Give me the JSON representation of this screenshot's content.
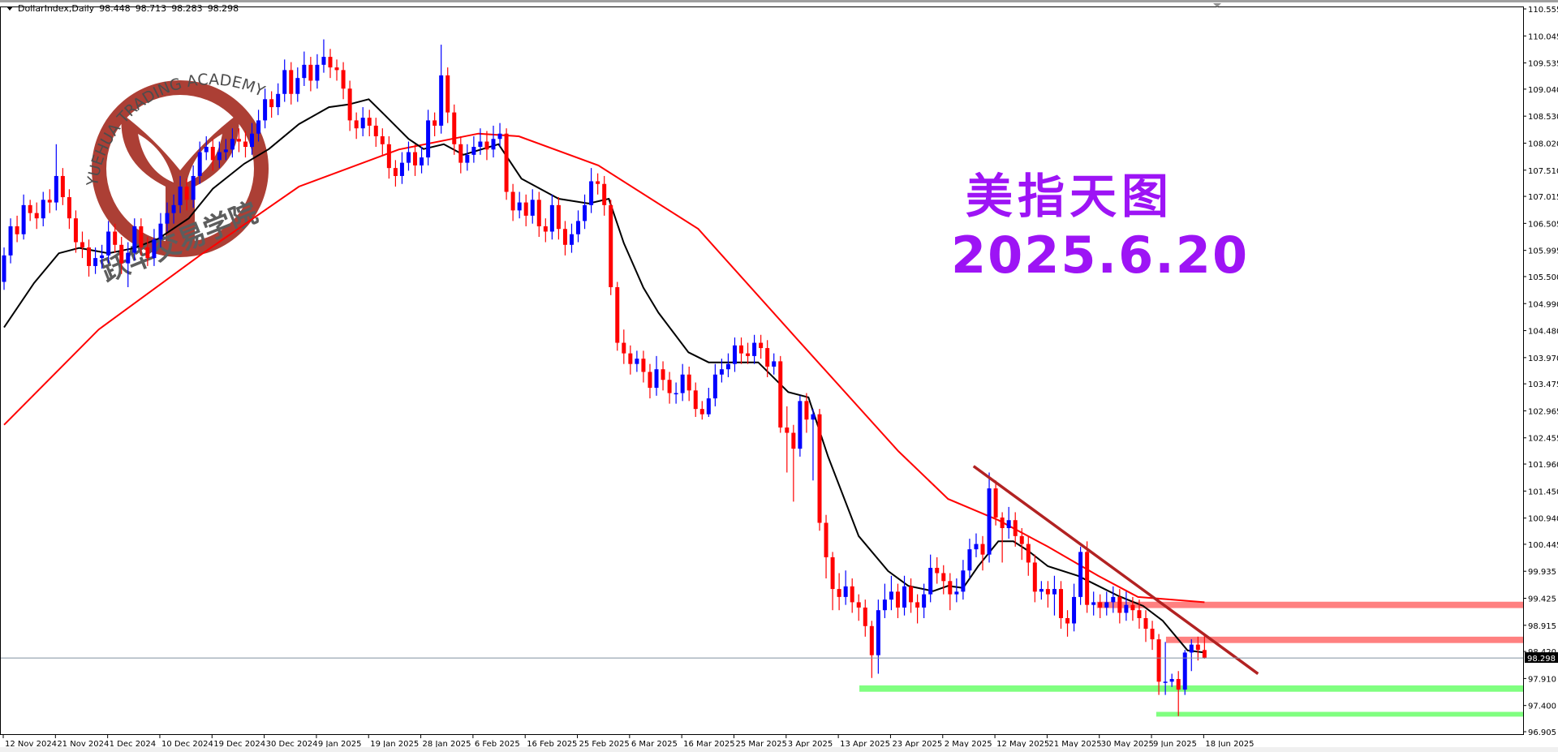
{
  "header": {
    "symbol": "DollarIndex,Daily",
    "open": "98.448",
    "high": "98.713",
    "low": "98.283",
    "close": "98.298"
  },
  "overlay": {
    "title": "美指天图",
    "date": "2025.6.20"
  },
  "logo": {
    "text_en": "YUEHUA TRADING ACADEMY",
    "text_cn": "跃华交易学院",
    "color": "#a8352b"
  },
  "colors": {
    "bull": "#0000ff",
    "bear": "#ff0000",
    "ma_fast": "#000000",
    "ma_slow": "#ff0000",
    "trendline": "#b22222",
    "resistance_zone": "#ff8080",
    "support_zone": "#80ff80",
    "overlay_text": "#9d14f5"
  },
  "chart_data": {
    "type": "candlestick",
    "symbol": "DollarIndex",
    "timeframe": "Daily",
    "ylim": [
      96.905,
      110.555
    ],
    "grid": false,
    "y_ticks": [
      "110.555",
      "110.045",
      "109.535",
      "109.040",
      "108.530",
      "108.020",
      "107.510",
      "107.015",
      "106.505",
      "105.995",
      "105.500",
      "104.990",
      "104.480",
      "103.970",
      "103.475",
      "102.965",
      "102.455",
      "101.960",
      "101.450",
      "100.940",
      "100.445",
      "99.935",
      "99.425",
      "98.915",
      "98.420",
      "97.910",
      "97.400",
      "96.905"
    ],
    "x_ticks": [
      "12 Nov 2024",
      "21 Nov 2024",
      "1 Dec 2024",
      "10 Dec 2024",
      "19 Dec 2024",
      "30 Dec 2024",
      "9 Jan 2025",
      "19 Jan 2025",
      "28 Jan 2025",
      "6 Feb 2025",
      "16 Feb 2025",
      "25 Feb 2025",
      "6 Mar 2025",
      "16 Mar 2025",
      "25 Mar 2025",
      "3 Apr 2025",
      "13 Apr 2025",
      "23 Apr 2025",
      "2 May 2025",
      "12 May 2025",
      "21 May 2025",
      "30 May 2025",
      "9 Jun 2025",
      "18 Jun 2025"
    ],
    "x_tick_every_bars": 8,
    "current_price": "98.298",
    "ohlc": [
      [
        105.4,
        106.05,
        105.25,
        105.9
      ],
      [
        105.9,
        106.6,
        105.75,
        106.45
      ],
      [
        106.45,
        106.65,
        106.15,
        106.3
      ],
      [
        106.3,
        107.05,
        106.2,
        106.85
      ],
      [
        106.85,
        106.95,
        106.55,
        106.7
      ],
      [
        106.7,
        106.9,
        106.4,
        106.6
      ],
      [
        106.6,
        107.1,
        106.45,
        106.95
      ],
      [
        106.95,
        107.15,
        106.7,
        106.9
      ],
      [
        106.9,
        108.0,
        106.75,
        107.4
      ],
      [
        107.4,
        107.55,
        106.85,
        107.0
      ],
      [
        107.0,
        107.15,
        106.4,
        106.6
      ],
      [
        106.6,
        106.75,
        105.95,
        106.15
      ],
      [
        106.15,
        106.35,
        105.85,
        106.05
      ],
      [
        106.05,
        106.2,
        105.5,
        105.7
      ],
      [
        105.7,
        106.05,
        105.55,
        105.85
      ],
      [
        105.85,
        106.1,
        105.65,
        105.9
      ],
      [
        105.9,
        106.55,
        105.75,
        106.35
      ],
      [
        106.35,
        106.5,
        105.95,
        106.1
      ],
      [
        106.1,
        106.25,
        105.55,
        105.75
      ],
      [
        105.75,
        106.15,
        105.3,
        105.95
      ],
      [
        105.95,
        106.6,
        105.8,
        106.45
      ],
      [
        106.45,
        106.6,
        105.9,
        106.05
      ],
      [
        106.05,
        106.25,
        105.7,
        105.85
      ],
      [
        105.85,
        106.4,
        105.7,
        106.2
      ],
      [
        106.2,
        106.7,
        106.05,
        106.5
      ],
      [
        106.5,
        106.9,
        106.35,
        106.7
      ],
      [
        106.7,
        107.05,
        106.5,
        106.85
      ],
      [
        106.85,
        107.4,
        106.7,
        107.2
      ],
      [
        107.2,
        107.35,
        106.75,
        106.95
      ],
      [
        106.95,
        107.6,
        106.8,
        107.4
      ],
      [
        107.4,
        108.05,
        107.25,
        107.85
      ],
      [
        107.85,
        108.15,
        107.7,
        107.95
      ],
      [
        107.95,
        108.1,
        107.5,
        107.7
      ],
      [
        107.7,
        108.05,
        107.55,
        107.85
      ],
      [
        107.85,
        108.1,
        107.7,
        107.9
      ],
      [
        107.9,
        108.3,
        107.75,
        108.1
      ],
      [
        108.1,
        108.3,
        107.85,
        108.05
      ],
      [
        108.05,
        108.25,
        107.75,
        107.95
      ],
      [
        107.95,
        108.4,
        107.8,
        108.2
      ],
      [
        108.2,
        108.65,
        108.05,
        108.45
      ],
      [
        108.45,
        109.05,
        108.3,
        108.85
      ],
      [
        108.85,
        109.0,
        108.5,
        108.7
      ],
      [
        108.7,
        109.15,
        108.55,
        108.95
      ],
      [
        108.95,
        109.6,
        108.8,
        109.4
      ],
      [
        109.4,
        109.55,
        108.75,
        108.95
      ],
      [
        108.95,
        109.45,
        108.8,
        109.25
      ],
      [
        109.25,
        109.75,
        109.1,
        109.5
      ],
      [
        109.5,
        109.65,
        109.0,
        109.2
      ],
      [
        109.2,
        109.7,
        109.05,
        109.5
      ],
      [
        109.5,
        109.98,
        109.35,
        109.65
      ],
      [
        109.65,
        109.8,
        109.25,
        109.45
      ],
      [
        109.45,
        109.6,
        109.2,
        109.4
      ],
      [
        109.4,
        109.55,
        108.85,
        109.05
      ],
      [
        109.05,
        109.2,
        108.25,
        108.45
      ],
      [
        108.45,
        108.6,
        108.1,
        108.3
      ],
      [
        108.3,
        108.7,
        108.15,
        108.5
      ],
      [
        108.5,
        108.65,
        108.15,
        108.35
      ],
      [
        108.35,
        108.5,
        107.95,
        108.15
      ],
      [
        108.15,
        108.3,
        107.8,
        108.0
      ],
      [
        108.0,
        108.15,
        107.35,
        107.55
      ],
      [
        107.55,
        107.7,
        107.2,
        107.4
      ],
      [
        107.4,
        107.85,
        107.25,
        107.65
      ],
      [
        107.65,
        108.05,
        107.5,
        107.85
      ],
      [
        107.85,
        108.0,
        107.4,
        107.6
      ],
      [
        107.6,
        107.95,
        107.45,
        107.75
      ],
      [
        107.75,
        108.65,
        107.6,
        108.45
      ],
      [
        108.45,
        108.6,
        108.15,
        108.35
      ],
      [
        108.35,
        109.88,
        108.2,
        109.3
      ],
      [
        109.3,
        109.45,
        108.4,
        108.6
      ],
      [
        108.6,
        108.75,
        107.8,
        108.0
      ],
      [
        108.0,
        108.15,
        107.45,
        107.65
      ],
      [
        107.65,
        108.0,
        107.5,
        107.8
      ],
      [
        107.8,
        108.15,
        107.65,
        107.95
      ],
      [
        107.95,
        108.3,
        107.8,
        108.05
      ],
      [
        108.05,
        108.25,
        107.7,
        107.9
      ],
      [
        107.9,
        108.35,
        107.75,
        108.1
      ],
      [
        108.1,
        108.4,
        107.95,
        108.2
      ],
      [
        108.2,
        108.3,
        106.95,
        107.1
      ],
      [
        107.1,
        107.25,
        106.55,
        106.75
      ],
      [
        106.75,
        107.1,
        106.6,
        106.9
      ],
      [
        106.9,
        107.05,
        106.45,
        106.65
      ],
      [
        106.65,
        107.15,
        106.5,
        106.95
      ],
      [
        106.95,
        107.1,
        106.25,
        106.45
      ],
      [
        106.45,
        106.6,
        106.15,
        106.35
      ],
      [
        106.35,
        107.05,
        106.2,
        106.85
      ],
      [
        106.85,
        107.0,
        106.2,
        106.4
      ],
      [
        106.4,
        106.55,
        105.9,
        106.1
      ],
      [
        106.1,
        106.5,
        105.95,
        106.3
      ],
      [
        106.3,
        106.75,
        106.15,
        106.55
      ],
      [
        106.55,
        107.05,
        106.4,
        106.85
      ],
      [
        106.85,
        107.55,
        106.7,
        107.3
      ],
      [
        107.3,
        107.45,
        107.05,
        107.25
      ],
      [
        107.25,
        107.4,
        106.65,
        106.85
      ],
      [
        106.85,
        106.95,
        105.15,
        105.3
      ],
      [
        105.3,
        105.4,
        104.1,
        104.25
      ],
      [
        104.25,
        104.5,
        103.85,
        104.05
      ],
      [
        104.05,
        104.2,
        103.65,
        103.85
      ],
      [
        103.85,
        104.1,
        103.7,
        103.95
      ],
      [
        103.95,
        104.1,
        103.5,
        103.7
      ],
      [
        103.7,
        103.85,
        103.2,
        103.4
      ],
      [
        103.4,
        104.0,
        103.25,
        103.75
      ],
      [
        103.75,
        103.9,
        103.35,
        103.55
      ],
      [
        103.55,
        103.7,
        103.1,
        103.3
      ],
      [
        103.3,
        103.5,
        103.1,
        103.3
      ],
      [
        103.3,
        103.85,
        103.15,
        103.65
      ],
      [
        103.65,
        103.8,
        103.15,
        103.35
      ],
      [
        103.35,
        103.5,
        102.85,
        103.0
      ],
      [
        103.0,
        103.15,
        102.8,
        102.9
      ],
      [
        102.9,
        103.4,
        102.85,
        103.2
      ],
      [
        103.2,
        103.85,
        103.05,
        103.65
      ],
      [
        103.65,
        103.95,
        103.5,
        103.75
      ],
      [
        103.75,
        104.05,
        103.6,
        103.85
      ],
      [
        103.85,
        104.35,
        103.7,
        104.2
      ],
      [
        104.2,
        104.35,
        103.85,
        104.05
      ],
      [
        104.05,
        104.25,
        103.85,
        104.0
      ],
      [
        104.0,
        104.4,
        103.85,
        104.25
      ],
      [
        104.25,
        104.4,
        103.95,
        104.15
      ],
      [
        104.15,
        104.3,
        103.6,
        103.8
      ],
      [
        103.8,
        104.05,
        103.65,
        103.9
      ],
      [
        103.9,
        104.0,
        102.55,
        102.65
      ],
      [
        102.65,
        103.05,
        101.8,
        102.55
      ],
      [
        102.55,
        102.7,
        101.25,
        102.25
      ],
      [
        102.25,
        103.25,
        102.1,
        103.15
      ],
      [
        103.15,
        103.3,
        102.55,
        102.8
      ],
      [
        102.8,
        103.0,
        101.65,
        102.9
      ],
      [
        102.9,
        103.0,
        100.7,
        100.85
      ],
      [
        100.85,
        101.0,
        99.8,
        100.2
      ],
      [
        100.2,
        100.3,
        99.2,
        99.6
      ],
      [
        99.6,
        99.9,
        99.2,
        99.45
      ],
      [
        99.45,
        99.95,
        99.3,
        99.65
      ],
      [
        99.65,
        99.8,
        99.15,
        99.35
      ],
      [
        99.35,
        99.5,
        99.0,
        99.25
      ],
      [
        99.25,
        99.4,
        98.7,
        98.9
      ],
      [
        98.9,
        99.0,
        97.92,
        98.35
      ],
      [
        98.35,
        99.4,
        98.0,
        99.2
      ],
      [
        99.2,
        99.7,
        99.05,
        99.4
      ],
      [
        99.4,
        99.85,
        99.2,
        99.55
      ],
      [
        99.55,
        99.7,
        99.05,
        99.25
      ],
      [
        99.25,
        99.85,
        99.1,
        99.65
      ],
      [
        99.65,
        99.8,
        99.15,
        99.35
      ],
      [
        99.35,
        99.5,
        98.95,
        99.25
      ],
      [
        99.25,
        99.7,
        99.05,
        99.5
      ],
      [
        99.5,
        100.25,
        99.35,
        100.0
      ],
      [
        100.0,
        100.2,
        99.7,
        99.9
      ],
      [
        99.9,
        100.05,
        99.5,
        99.75
      ],
      [
        99.75,
        99.9,
        99.2,
        99.5
      ],
      [
        99.5,
        99.8,
        99.35,
        99.55
      ],
      [
        99.55,
        100.15,
        99.4,
        99.95
      ],
      [
        99.95,
        100.55,
        99.8,
        100.35
      ],
      [
        100.35,
        100.65,
        100.2,
        100.45
      ],
      [
        100.45,
        100.6,
        99.95,
        100.25
      ],
      [
        100.25,
        101.8,
        100.1,
        101.5
      ],
      [
        101.5,
        101.65,
        100.8,
        100.95
      ],
      [
        100.95,
        101.05,
        100.1,
        100.75
      ],
      [
        100.75,
        101.15,
        100.55,
        100.9
      ],
      [
        100.9,
        101.05,
        100.4,
        100.6
      ],
      [
        100.6,
        100.75,
        100.15,
        100.45
      ],
      [
        100.45,
        100.6,
        99.85,
        100.1
      ],
      [
        100.1,
        100.25,
        99.35,
        99.55
      ],
      [
        99.55,
        99.75,
        99.4,
        99.6
      ],
      [
        99.6,
        99.75,
        99.25,
        99.5
      ],
      [
        99.5,
        99.85,
        99.1,
        99.6
      ],
      [
        99.6,
        99.75,
        98.85,
        99.05
      ],
      [
        99.05,
        99.2,
        98.7,
        98.95
      ],
      [
        98.95,
        99.7,
        98.8,
        99.45
      ],
      [
        99.45,
        100.4,
        99.3,
        100.3
      ],
      [
        100.3,
        100.5,
        99.15,
        99.3
      ],
      [
        99.3,
        99.55,
        99.1,
        99.35
      ],
      [
        99.35,
        99.5,
        99.05,
        99.25
      ],
      [
        99.25,
        99.55,
        99.1,
        99.35
      ],
      [
        99.35,
        99.65,
        99.15,
        99.45
      ],
      [
        99.45,
        99.6,
        98.95,
        99.15
      ],
      [
        99.15,
        99.55,
        99.0,
        99.3
      ],
      [
        99.3,
        99.45,
        99.0,
        99.2
      ],
      [
        99.2,
        99.4,
        98.85,
        99.05
      ],
      [
        99.05,
        99.2,
        98.6,
        98.85
      ],
      [
        98.85,
        99.0,
        98.45,
        98.65
      ],
      [
        98.65,
        98.75,
        97.6,
        97.85
      ],
      [
        97.85,
        98.6,
        97.6,
        97.85
      ],
      [
        97.85,
        98.0,
        97.75,
        97.9
      ],
      [
        97.9,
        98.05,
        97.2,
        97.7
      ],
      [
        97.7,
        98.45,
        97.6,
        98.4
      ],
      [
        98.4,
        98.65,
        98.05,
        98.55
      ],
      [
        98.55,
        98.7,
        98.25,
        98.45
      ],
      [
        98.448,
        98.713,
        98.283,
        98.298
      ]
    ],
    "ma_fast": [
      [
        0,
        104.54
      ],
      [
        4.6,
        105.38
      ],
      [
        8.4,
        105.94
      ],
      [
        11.5,
        106.04
      ],
      [
        16,
        105.94
      ],
      [
        20,
        106.04
      ],
      [
        23.7,
        106.22
      ],
      [
        28.3,
        106.6
      ],
      [
        32,
        107.16
      ],
      [
        36.8,
        107.63
      ],
      [
        40.6,
        107.91
      ],
      [
        45.2,
        108.38
      ],
      [
        49.8,
        108.7
      ],
      [
        52.8,
        108.75
      ],
      [
        55.9,
        108.85
      ],
      [
        58.2,
        108.57
      ],
      [
        62,
        108.1
      ],
      [
        64.3,
        107.91
      ],
      [
        67.4,
        108.0
      ],
      [
        70.4,
        107.8
      ],
      [
        75.8,
        108.0
      ],
      [
        79.3,
        107.35
      ],
      [
        85,
        106.97
      ],
      [
        89.6,
        106.88
      ],
      [
        92.7,
        106.97
      ],
      [
        95,
        106.13
      ],
      [
        98,
        105.29
      ],
      [
        100.3,
        104.82
      ],
      [
        104.9,
        104.07
      ],
      [
        108,
        103.88
      ],
      [
        112.6,
        103.88
      ],
      [
        115.6,
        103.88
      ],
      [
        120.2,
        103.32
      ],
      [
        123.3,
        103.22
      ],
      [
        126.3,
        102.1
      ],
      [
        131,
        100.6
      ],
      [
        135.5,
        99.94
      ],
      [
        138.6,
        99.66
      ],
      [
        142.4,
        99.56
      ],
      [
        144.7,
        99.66
      ],
      [
        147,
        99.62
      ],
      [
        149.3,
        100.03
      ],
      [
        152.4,
        100.5
      ],
      [
        154.7,
        100.5
      ],
      [
        157,
        100.32
      ],
      [
        160,
        100.03
      ],
      [
        164.6,
        99.85
      ],
      [
        167.7,
        99.66
      ],
      [
        170.8,
        99.47
      ],
      [
        174.6,
        99.28
      ],
      [
        177.6,
        99.0
      ],
      [
        181.4,
        98.44
      ],
      [
        184,
        98.4
      ]
    ],
    "ma_slow": [
      [
        0,
        102.7
      ],
      [
        14.5,
        104.5
      ],
      [
        30,
        105.9
      ],
      [
        45.2,
        107.2
      ],
      [
        60.5,
        107.9
      ],
      [
        72.7,
        108.2
      ],
      [
        78.9,
        108.15
      ],
      [
        91.1,
        107.6
      ],
      [
        106.4,
        106.4
      ],
      [
        121.7,
        104.3
      ],
      [
        137.1,
        102.2
      ],
      [
        144.7,
        101.3
      ],
      [
        152.4,
        100.9
      ],
      [
        160,
        100.4
      ],
      [
        167.7,
        99.85
      ],
      [
        173.8,
        99.45
      ],
      [
        184,
        99.35
      ]
    ],
    "trendline": {
      "from": [
        148.6,
        101.92
      ],
      "to": [
        192.2,
        98.0
      ]
    },
    "zones": [
      {
        "type": "resistance",
        "from_bar": 167.5,
        "top": 99.36,
        "bottom": 99.24
      },
      {
        "type": "resistance",
        "from_bar": 178.1,
        "top": 98.7,
        "bottom": 98.58
      },
      {
        "type": "support",
        "from_bar": 131.1,
        "top": 97.78,
        "bottom": 97.66
      },
      {
        "type": "support",
        "from_bar": 176.6,
        "top": 97.28,
        "bottom": 97.19
      }
    ]
  }
}
